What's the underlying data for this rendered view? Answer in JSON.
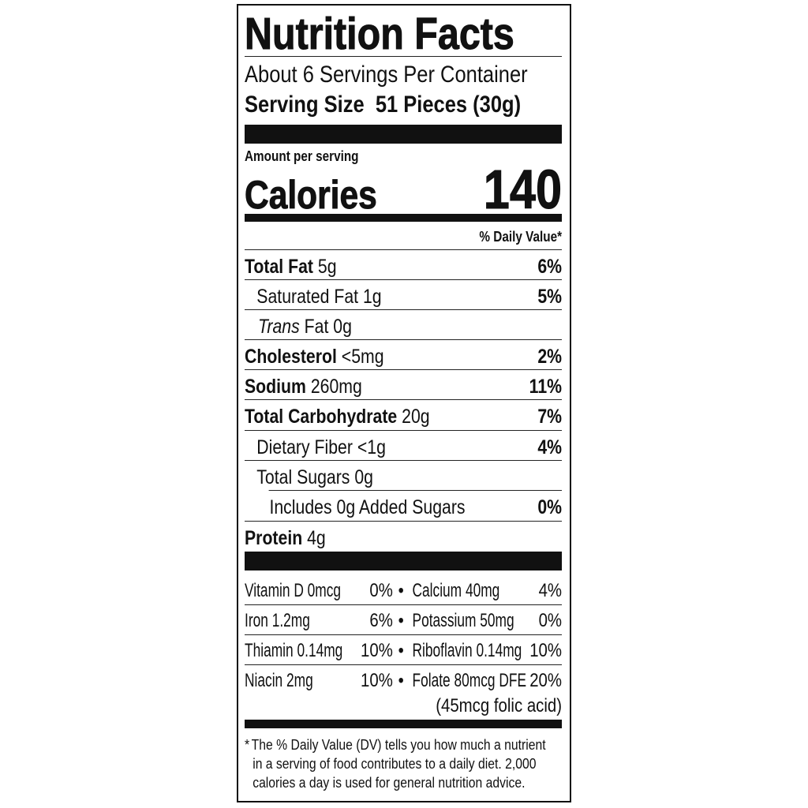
{
  "title": "Nutrition Facts",
  "servings_per_container": "About 6 Servings Per Container",
  "serving_size_label": "Serving Size",
  "serving_size_value": "51 Pieces (30g)",
  "amount_per_serving": "Amount per serving",
  "calories_label": "Calories",
  "calories_value": "140",
  "daily_value_header": "% Daily Value*",
  "nutrients": [
    {
      "name": "Total Fat",
      "amount": "5g",
      "dv": "6%"
    },
    {
      "name": "Saturated Fat",
      "amount": "1g",
      "dv": "5%"
    },
    {
      "name": "Trans",
      "suffix": "Fat 0g",
      "dv": ""
    },
    {
      "name": "Cholesterol",
      "amount": "<5mg",
      "dv": "2%"
    },
    {
      "name": "Sodium",
      "amount": "260mg",
      "dv": "11%"
    },
    {
      "name": "Total Carbohydrate",
      "amount": "20g",
      "dv": "7%"
    },
    {
      "name": "Dietary Fiber",
      "amount": "<1g",
      "dv": "4%"
    },
    {
      "name": "Total Sugars",
      "amount": "0g",
      "dv": ""
    },
    {
      "name": "Includes 0g Added Sugars",
      "dv": "0%"
    },
    {
      "name": "Protein",
      "amount": "4g"
    }
  ],
  "vitamins": [
    {
      "left": "Vitamin D 0mcg",
      "left_dv": "0%",
      "right": "Calcium 40mg",
      "right_dv": "4%"
    },
    {
      "left": "Iron 1.2mg",
      "left_dv": "6%",
      "right": "Potassium 50mg",
      "right_dv": "0%"
    },
    {
      "left": "Thiamin 0.14mg",
      "left_dv": "10%",
      "right": "Riboflavin 0.14mg",
      "right_dv": "10%"
    },
    {
      "left": "Niacin 2mg",
      "left_dv": "10%",
      "right": "Folate 80mcg DFE",
      "right_dv": "20%",
      "right_note": "(45mcg folic acid)"
    }
  ],
  "bullet": "•",
  "footnote": {
    "asterisk": "*",
    "line1": "The % Daily Value (DV) tells you how much a nutrient",
    "line2": "in a serving of food contributes to a daily diet. 2,000",
    "line3": "calories a day is used for general nutrition advice."
  }
}
